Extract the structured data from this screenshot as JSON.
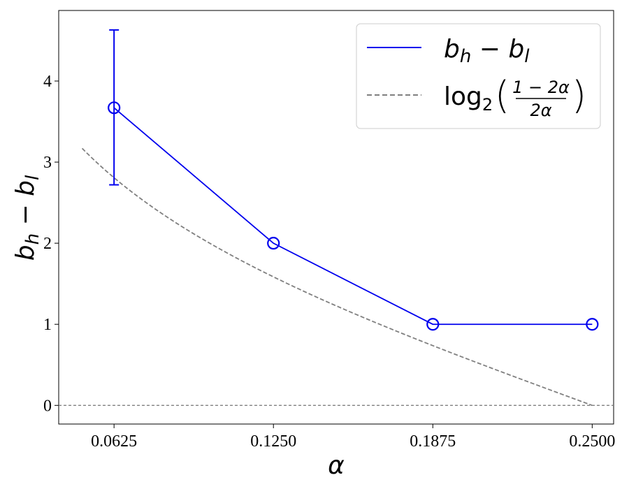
{
  "chart_data": {
    "type": "line",
    "xlabel": "α",
    "ylabel": "b_h − b_l",
    "xlim": [
      0.0408,
      0.2584
    ],
    "ylim": [
      -0.23,
      4.87
    ],
    "x_ticks": [
      {
        "value": 0.0625,
        "label": "0.0625"
      },
      {
        "value": 0.125,
        "label": "0.1250"
      },
      {
        "value": 0.1875,
        "label": "0.1875"
      },
      {
        "value": 0.25,
        "label": "0.2500"
      }
    ],
    "y_ticks": [
      {
        "value": 0,
        "label": "0"
      },
      {
        "value": 1,
        "label": "1"
      },
      {
        "value": 2,
        "label": "2"
      },
      {
        "value": 3,
        "label": "3"
      },
      {
        "value": 4,
        "label": "4"
      }
    ],
    "grid": false,
    "legend_placement": "top-right",
    "series": [
      {
        "name": "b_h − b_l",
        "style": "solid-line-circle-markers",
        "color": "#0000ee",
        "x": [
          0.0625,
          0.125,
          0.1875,
          0.25
        ],
        "y": [
          3.67,
          2.0,
          1.0,
          1.0
        ],
        "error_bars": [
          {
            "x": 0.0625,
            "low": 2.72,
            "high": 4.63
          }
        ]
      },
      {
        "name": "log2((1 − 2α)/(2α))",
        "style": "dashed",
        "color": "#808080",
        "function": "log2((1-2*x)/(2*x))",
        "x_range": [
          0.05,
          0.25
        ]
      }
    ],
    "reference_lines": [
      {
        "y": 0,
        "style": "dashed",
        "color": "#808080"
      }
    ],
    "legend_items": [
      {
        "series": 0,
        "label_main": "b",
        "label_sub1": "h",
        "label_op": " − ",
        "label_main2": "b",
        "label_sub2": "l"
      },
      {
        "series": 1,
        "label_func": "log",
        "label_base": "2",
        "label_num": "1 − 2α",
        "label_den": "2α"
      }
    ]
  }
}
